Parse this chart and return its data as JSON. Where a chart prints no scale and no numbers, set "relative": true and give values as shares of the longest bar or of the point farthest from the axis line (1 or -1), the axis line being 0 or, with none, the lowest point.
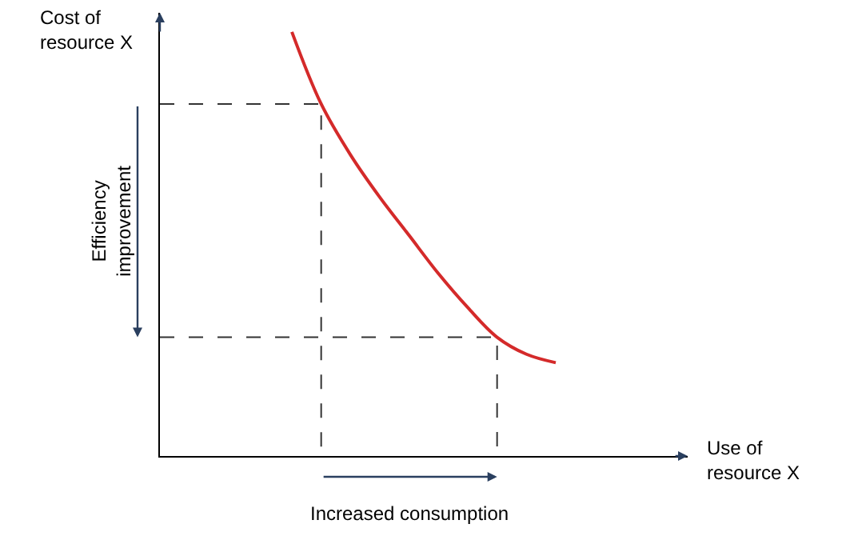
{
  "chart_data": {
    "type": "line",
    "relative": true,
    "categories": [
      null,
      null,
      null,
      null,
      null,
      null,
      null,
      null,
      null,
      null
    ],
    "series": [
      {
        "color": "#d42a2a",
        "values": [
          1.0,
          0.83,
          0.71,
          0.61,
          0.52,
          0.43,
          0.35,
          0.28,
          0.24,
          0.22
        ]
      }
    ],
    "ref_lines": [
      {
        "axis": "y",
        "value": 0.83,
        "color": "#333333",
        "line_style": "dashed"
      },
      {
        "axis": "y",
        "value": 0.28,
        "color": "#333333",
        "line_style": "dashed"
      }
    ],
    "annotations": [
      "Efficiency\nimprovement",
      "Increased consumption",
      "Cost of\nresource X",
      "Use of\nresource X"
    ],
    "legend": false,
    "marker": "none",
    "line_style": "solid"
  }
}
